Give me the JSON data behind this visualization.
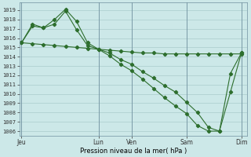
{
  "xlabel": "Pression niveau de la mer( hPa )",
  "background_color": "#cce8e8",
  "grid_color": "#aacccc",
  "line_color": "#2d6e2d",
  "ylim_min": 1005.5,
  "ylim_max": 1019.8,
  "xlim_min": -0.2,
  "xlim_max": 20.5,
  "xtick_labels": [
    "Jeu",
    "Lun",
    "Ven",
    "Sam",
    "Dim"
  ],
  "xtick_positions": [
    0,
    7,
    10,
    15,
    20
  ],
  "ytick_min": 1006,
  "ytick_max": 1019,
  "series1_x": [
    0,
    1,
    2,
    3,
    4,
    5,
    6,
    7,
    8,
    9,
    10,
    11,
    12,
    13,
    14,
    15,
    16,
    17,
    18,
    19,
    20
  ],
  "series1_y": [
    1015.5,
    1015.4,
    1015.3,
    1015.2,
    1015.1,
    1015.0,
    1014.9,
    1014.8,
    1014.7,
    1014.6,
    1014.5,
    1014.4,
    1014.4,
    1014.3,
    1014.3,
    1014.3,
    1014.3,
    1014.3,
    1014.3,
    1014.3,
    1014.3
  ],
  "series2_x": [
    0,
    1,
    2,
    3,
    4,
    5,
    6,
    7,
    8,
    9,
    10,
    11,
    12,
    13,
    14,
    15,
    16,
    17,
    18,
    19,
    20
  ],
  "series2_y": [
    1015.5,
    1017.3,
    1017.1,
    1018.0,
    1019.1,
    1017.8,
    1015.5,
    1014.8,
    1014.4,
    1013.7,
    1013.2,
    1012.4,
    1011.7,
    1010.9,
    1010.2,
    1009.1,
    1008.0,
    1006.4,
    1006.0,
    1012.2,
    1014.4
  ],
  "series3_x": [
    0,
    1,
    2,
    3,
    4,
    5,
    6,
    7,
    8,
    9,
    10,
    11,
    12,
    13,
    14,
    15,
    16,
    17,
    18,
    19,
    20
  ],
  "series3_y": [
    1015.5,
    1017.5,
    1017.1,
    1017.5,
    1018.9,
    1016.9,
    1015.2,
    1014.8,
    1014.1,
    1013.2,
    1012.5,
    1011.6,
    1010.6,
    1009.6,
    1008.7,
    1007.9,
    1006.6,
    1006.0,
    1006.0,
    1010.2,
    1014.4
  ],
  "figwidth": 3.2,
  "figheight": 2.0,
  "dpi": 100
}
